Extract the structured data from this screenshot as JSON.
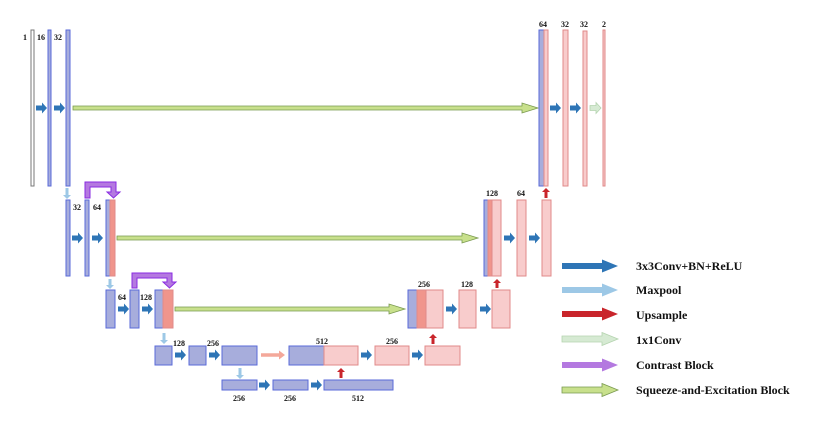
{
  "colors": {
    "encoder_fill": "#a7addc",
    "encoder_stroke": "#5a6ad8",
    "decoder_fill": "#f8cccc",
    "decoder_stroke": "#e08a8a",
    "contrast_fill": "#f0958c",
    "conv": "#2e75b6",
    "maxpool": "#9dc8e6",
    "upsample": "#c9252b",
    "conv1x1": "#d6ead3",
    "contrast_block": "#b479e0",
    "se_block": "#c8e08c"
  },
  "labels": {
    "l0": [
      "1",
      "16",
      "32"
    ],
    "l0r": [
      "64",
      "32",
      "32",
      "2"
    ],
    "l1": [
      "32",
      "64"
    ],
    "l1r": [
      "128",
      "64"
    ],
    "l2": [
      "64",
      "128"
    ],
    "l2r": [
      "256",
      "128"
    ],
    "l3": [
      "128",
      "256"
    ],
    "l3r": [
      "512",
      "256"
    ],
    "l4": [
      "256",
      "256",
      "512"
    ]
  },
  "legend": [
    {
      "label": "3x3Conv+BN+ReLU",
      "icon": "conv-arrow"
    },
    {
      "label": "Maxpool",
      "icon": "maxpool-arrow"
    },
    {
      "label": "Upsample",
      "icon": "upsample-arrow"
    },
    {
      "label": "1x1Conv",
      "icon": "conv1x1-arrow"
    },
    {
      "label": "Contrast Block",
      "icon": "contrast-block-arrow"
    },
    {
      "label": "Squeeze-and-Excitation Block",
      "icon": "se-block-arrow"
    }
  ]
}
